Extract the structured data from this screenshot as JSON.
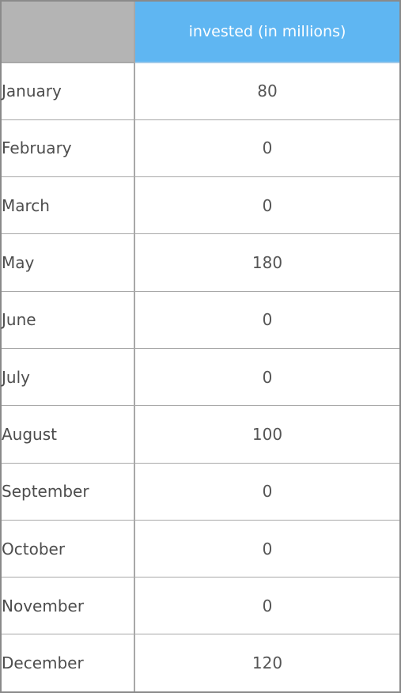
{
  "chart_data": {
    "type": "table",
    "column_header": "invested (in millions)",
    "categories": [
      "January",
      "February",
      "March",
      "May",
      "June",
      "July",
      "August",
      "September",
      "October",
      "November",
      "December"
    ],
    "values": [
      80,
      0,
      0,
      180,
      0,
      0,
      100,
      0,
      0,
      0,
      120
    ]
  },
  "colors": {
    "header_bg": "#5fb6f2",
    "corner_bg": "#b4b4b4",
    "header_text": "#ffffff",
    "body_text": "#4d4d4d",
    "grid": "#a8a8a8"
  }
}
